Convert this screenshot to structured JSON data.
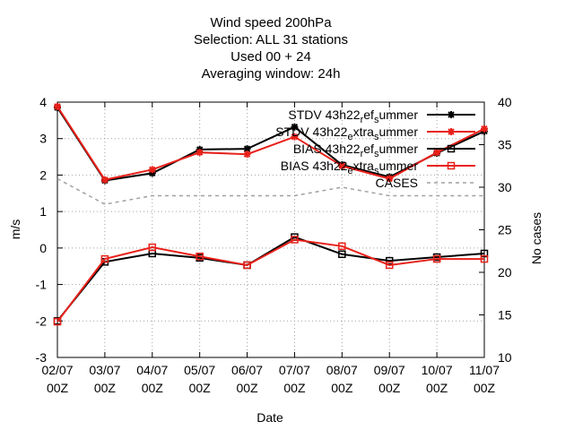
{
  "chart_data": {
    "type": "line",
    "title_lines": [
      "Wind speed 200hPa",
      "Selection: ALL     31 stations",
      "Used  00  + 24",
      "Averaging window: 24h"
    ],
    "xlabel": "Date",
    "ylabel": "m/s",
    "y2label": "No cases",
    "categories": [
      [
        "02/07",
        "00Z"
      ],
      [
        "03/07",
        "00Z"
      ],
      [
        "04/07",
        "00Z"
      ],
      [
        "05/07",
        "00Z"
      ],
      [
        "06/07",
        "00Z"
      ],
      [
        "07/07",
        "00Z"
      ],
      [
        "08/07",
        "00Z"
      ],
      [
        "09/07",
        "00Z"
      ],
      [
        "10/07",
        "00Z"
      ],
      [
        "11/07",
        "00Z"
      ]
    ],
    "ylim": [
      -3,
      4
    ],
    "yticks": [
      "-3",
      "-2",
      "-1",
      "0",
      "1",
      "2",
      "3",
      "4"
    ],
    "y2lim": [
      10,
      40
    ],
    "y2ticks": [
      "10",
      "15",
      "20",
      "25",
      "30",
      "35",
      "40"
    ],
    "grid": true,
    "legend_position": "top-right",
    "series": [
      {
        "name": "STDV 43h22_ref_summer",
        "legend_parts": [
          [
            "STDV 43h22",
            "n"
          ],
          [
            "r",
            "sub"
          ],
          [
            "ef",
            "n"
          ],
          [
            "s",
            "sub"
          ],
          [
            "ummer",
            "n"
          ]
        ],
        "axis": "y",
        "color": "#000000",
        "marker": "star",
        "dash": "",
        "values": [
          3.85,
          1.85,
          2.05,
          2.7,
          2.72,
          3.32,
          2.28,
          1.95,
          2.6,
          3.2
        ]
      },
      {
        "name": "STDV 43h22_extra_summer",
        "legend_parts": [
          [
            "STDV 43h22",
            "n"
          ],
          [
            "e",
            "sub"
          ],
          [
            "xtra",
            "n"
          ],
          [
            "s",
            "sub"
          ],
          [
            "ummer",
            "n"
          ]
        ],
        "axis": "y",
        "color": "#e8211a",
        "marker": "star",
        "dash": "",
        "values": [
          3.88,
          1.87,
          2.15,
          2.62,
          2.57,
          3.05,
          2.25,
          1.9,
          2.62,
          3.27
        ]
      },
      {
        "name": "BIAS 43h22_ref_summer",
        "legend_parts": [
          [
            "BIAS 43h22",
            "n"
          ],
          [
            "r",
            "sub"
          ],
          [
            "ef",
            "n"
          ],
          [
            "s",
            "sub"
          ],
          [
            "ummer",
            "n"
          ]
        ],
        "axis": "y",
        "color": "#000000",
        "marker": "square",
        "dash": "",
        "values": [
          -2.0,
          -0.38,
          -0.15,
          -0.27,
          -0.47,
          0.3,
          -0.17,
          -0.35,
          -0.25,
          -0.15
        ]
      },
      {
        "name": "BIAS 43h22_extra_summer",
        "legend_parts": [
          [
            "BIAS 43h22",
            "n"
          ],
          [
            "e",
            "sub"
          ],
          [
            "xtra",
            "n"
          ],
          [
            "s",
            "sub"
          ],
          [
            "ummer",
            "n"
          ]
        ],
        "axis": "y",
        "color": "#e8211a",
        "marker": "square",
        "dash": "",
        "values": [
          -2.02,
          -0.3,
          0.02,
          -0.23,
          -0.47,
          0.23,
          0.05,
          -0.47,
          -0.3,
          -0.3
        ]
      },
      {
        "name": "CASES",
        "legend_parts": [
          [
            "CASES",
            "n"
          ]
        ],
        "axis": "y2",
        "color": "#a0a0a0",
        "marker": "none",
        "dash": "4 4",
        "values": [
          31,
          28,
          29,
          29,
          29,
          29,
          30,
          29,
          29,
          29
        ]
      }
    ]
  }
}
